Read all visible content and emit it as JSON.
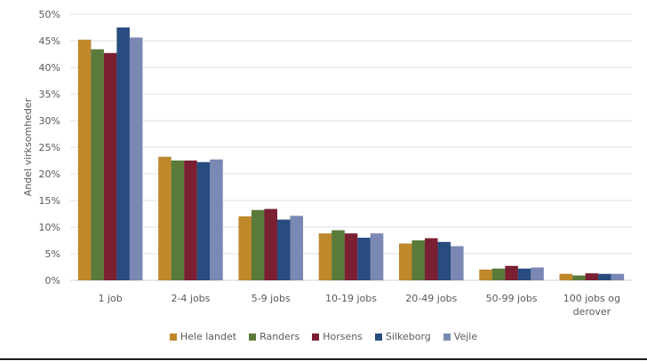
{
  "chart_data": {
    "type": "bar",
    "title": "",
    "xlabel": "",
    "ylabel": "Andel virksomheder",
    "ylim": [
      0,
      50
    ],
    "yticks": [
      "0%",
      "5%",
      "10%",
      "15%",
      "20%",
      "25%",
      "30%",
      "35%",
      "40%",
      "45%",
      "50%"
    ],
    "grid": true,
    "legend_position": "bottom",
    "categories": [
      "1 job",
      "2-4 jobs",
      "5-9 jobs",
      "10-19 jobs",
      "20-49 jobs",
      "50-99 jobs",
      "100 jobs og derover"
    ],
    "category_lines": [
      [
        "1 job"
      ],
      [
        "2-4 jobs"
      ],
      [
        "5-9 jobs"
      ],
      [
        "10-19 jobs"
      ],
      [
        "20-49 jobs"
      ],
      [
        "50-99 jobs"
      ],
      [
        "100 jobs og",
        "derover"
      ]
    ],
    "series": [
      {
        "name": "Hele landet",
        "color": "#C0882A",
        "values": [
          45.2,
          23.2,
          12.0,
          8.8,
          6.9,
          2.0,
          1.2
        ]
      },
      {
        "name": "Randers",
        "color": "#5A7A3A",
        "values": [
          43.4,
          22.5,
          13.2,
          9.4,
          7.5,
          2.2,
          0.9
        ]
      },
      {
        "name": "Horsens",
        "color": "#7B1F32",
        "values": [
          42.7,
          22.5,
          13.4,
          8.8,
          7.9,
          2.7,
          1.3
        ]
      },
      {
        "name": "Silkeborg",
        "color": "#284C80",
        "values": [
          47.5,
          22.2,
          11.4,
          8.0,
          7.2,
          2.2,
          1.2
        ]
      },
      {
        "name": "Vejle",
        "color": "#7A88B4",
        "values": [
          45.6,
          22.7,
          12.1,
          8.8,
          6.4,
          2.4,
          1.2
        ]
      }
    ]
  }
}
